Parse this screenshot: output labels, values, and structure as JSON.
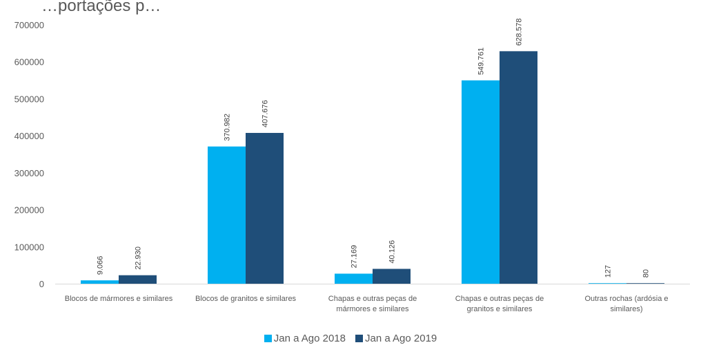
{
  "chart_data": {
    "type": "bar",
    "title": "…portações p…",
    "categories": [
      "Blocos de mármores e similares",
      "Blocos de granitos e similares",
      "Chapas e outras peças de mármores e similares",
      "Chapas e outras peças de granitos e similares",
      "Outras rochas (ardósia e similares)"
    ],
    "category_lines": [
      [
        "Blocos de mármores e similares"
      ],
      [
        "Blocos de granitos e similares"
      ],
      [
        "Chapas e outras peças de",
        "mármores e similares"
      ],
      [
        "Chapas e outras peças de",
        "granitos e similares"
      ],
      [
        "Outras rochas (ardósia e",
        "similares)"
      ]
    ],
    "series": [
      {
        "name": "Jan a Ago 2018",
        "color": "#00B0F0",
        "values": [
          9066,
          370982,
          27169,
          549761,
          127
        ],
        "labels": [
          "9.066",
          "370.982",
          "27.169",
          "549.761",
          "127"
        ]
      },
      {
        "name": "Jan a Ago 2019",
        "color": "#1F4E79",
        "values": [
          22930,
          407676,
          40126,
          628578,
          80
        ],
        "labels": [
          "22.930",
          "407.676",
          "40.126",
          "628.578",
          "80"
        ]
      }
    ],
    "ylim": [
      0,
      700000
    ],
    "yticks": [
      "0",
      "100000",
      "200000",
      "300000",
      "400000",
      "500000",
      "600000",
      "700000"
    ],
    "grid": false,
    "legend_position": "bottom"
  }
}
